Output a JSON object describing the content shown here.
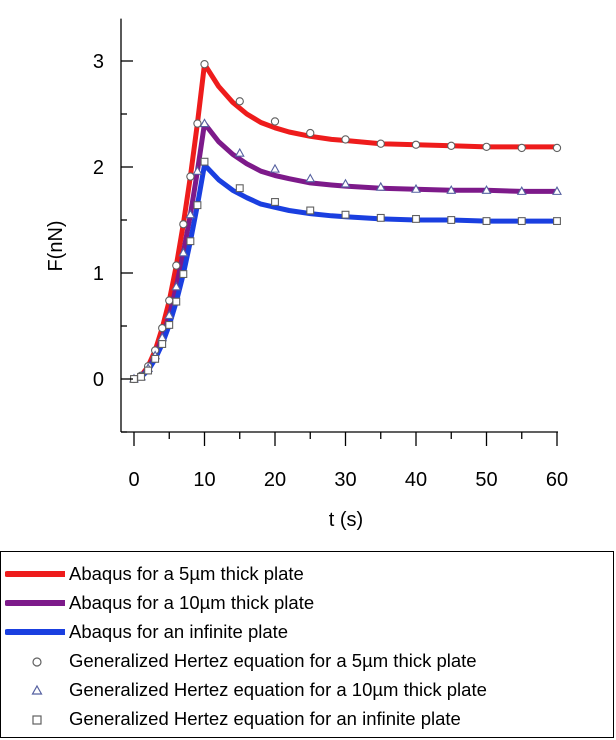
{
  "chart_data": {
    "type": "line",
    "title": "",
    "xlabel": "t (s)",
    "ylabel": "F(nN)",
    "xlim": [
      -1,
      60
    ],
    "ylim": [
      -0.5,
      3.4
    ],
    "x_ticks": [
      0,
      10,
      20,
      30,
      40,
      50,
      60
    ],
    "x_tick_labels": [
      "0",
      "10",
      "20",
      "30",
      "40",
      "50",
      "60"
    ],
    "y_ticks": [
      0,
      1,
      2,
      3
    ],
    "y_tick_labels": [
      "0",
      "1",
      "2",
      "3"
    ],
    "grid": false,
    "legend_position": "bottom",
    "series": [
      {
        "name": "Abaqus for a 5µm thick plate",
        "kind": "line",
        "color": "#ee1c1c",
        "x": [
          0,
          1,
          2,
          3,
          4,
          5,
          6,
          7,
          8,
          9,
          10,
          12,
          14,
          16,
          18,
          20,
          22,
          25,
          28,
          30,
          35,
          40,
          45,
          50,
          55,
          60
        ],
        "y": [
          0,
          0.03,
          0.12,
          0.27,
          0.48,
          0.74,
          1.07,
          1.46,
          1.91,
          2.41,
          2.97,
          2.76,
          2.61,
          2.5,
          2.42,
          2.37,
          2.33,
          2.29,
          2.26,
          2.25,
          2.22,
          2.21,
          2.2,
          2.19,
          2.19,
          2.19
        ]
      },
      {
        "name": "Abaqus for a 10µm thick plate",
        "kind": "line",
        "color": "#7d1a8a",
        "x": [
          0,
          1,
          2,
          3,
          4,
          5,
          6,
          7,
          8,
          9,
          10,
          12,
          14,
          16,
          18,
          20,
          22,
          25,
          28,
          30,
          35,
          40,
          45,
          50,
          55,
          60
        ],
        "y": [
          0,
          0.02,
          0.1,
          0.22,
          0.39,
          0.6,
          0.87,
          1.19,
          1.55,
          1.96,
          2.41,
          2.24,
          2.12,
          2.03,
          1.96,
          1.92,
          1.89,
          1.85,
          1.83,
          1.82,
          1.8,
          1.79,
          1.78,
          1.78,
          1.77,
          1.77
        ]
      },
      {
        "name": "Abaqus for an infinite plate",
        "kind": "line",
        "color": "#1a3fe0",
        "x": [
          0,
          1,
          2,
          3,
          4,
          5,
          6,
          7,
          8,
          9,
          10,
          12,
          14,
          16,
          18,
          20,
          22,
          25,
          28,
          30,
          35,
          40,
          45,
          50,
          55,
          60
        ],
        "y": [
          0,
          0.02,
          0.08,
          0.19,
          0.33,
          0.51,
          0.73,
          0.99,
          1.3,
          1.64,
          2.02,
          1.88,
          1.78,
          1.71,
          1.65,
          1.62,
          1.59,
          1.56,
          1.54,
          1.53,
          1.51,
          1.5,
          1.5,
          1.49,
          1.49,
          1.49
        ]
      },
      {
        "name": "Generalized Hertez equation for a 5µm thick plate",
        "kind": "marker",
        "marker": "circle",
        "color": "#606060",
        "x": [
          0,
          1,
          2,
          3,
          4,
          5,
          6,
          7,
          8,
          9,
          10,
          15,
          20,
          25,
          30,
          35,
          40,
          45,
          50,
          55,
          60
        ],
        "y": [
          0,
          0.03,
          0.12,
          0.27,
          0.48,
          0.74,
          1.07,
          1.46,
          1.91,
          2.41,
          2.97,
          2.62,
          2.43,
          2.32,
          2.26,
          2.22,
          2.21,
          2.2,
          2.19,
          2.18,
          2.18
        ]
      },
      {
        "name": "Generalized Hertez equation for a 10µm thick plate",
        "kind": "marker",
        "marker": "triangle",
        "color": "#5560a0",
        "x": [
          0,
          1,
          2,
          3,
          4,
          5,
          6,
          7,
          8,
          9,
          10,
          15,
          20,
          25,
          30,
          35,
          40,
          45,
          50,
          55,
          60
        ],
        "y": [
          0,
          0.02,
          0.1,
          0.22,
          0.39,
          0.6,
          0.87,
          1.19,
          1.55,
          1.96,
          2.41,
          2.13,
          1.98,
          1.89,
          1.84,
          1.81,
          1.79,
          1.78,
          1.78,
          1.77,
          1.77
        ]
      },
      {
        "name": "Generalized Hertez equation for an infinite plate",
        "kind": "marker",
        "marker": "square",
        "color": "#606060",
        "x": [
          0,
          1,
          2,
          3,
          4,
          5,
          6,
          7,
          8,
          9,
          10,
          15,
          20,
          25,
          30,
          35,
          40,
          45,
          50,
          55,
          60
        ],
        "y": [
          0,
          0.02,
          0.08,
          0.19,
          0.33,
          0.51,
          0.73,
          0.99,
          1.3,
          1.64,
          2.05,
          1.8,
          1.67,
          1.59,
          1.55,
          1.52,
          1.51,
          1.5,
          1.49,
          1.49,
          1.49
        ]
      }
    ]
  }
}
